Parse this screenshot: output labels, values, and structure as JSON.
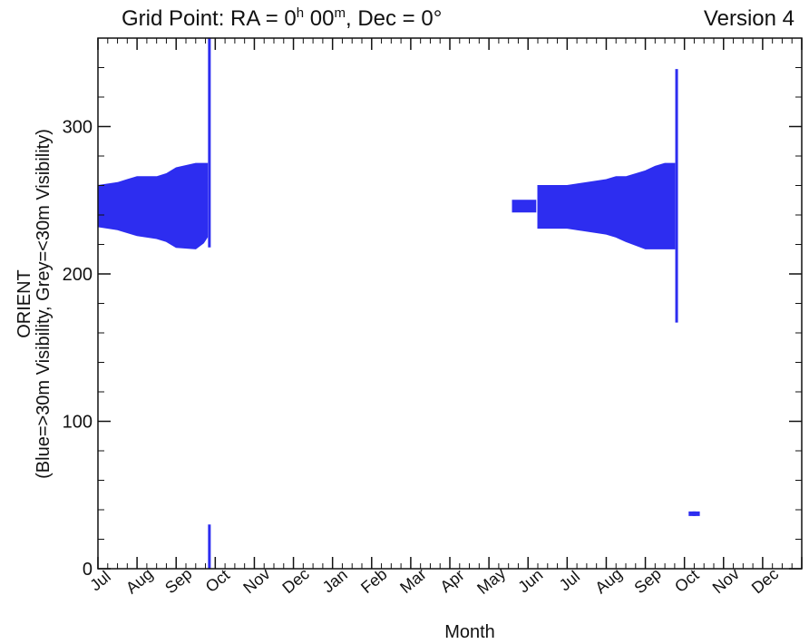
{
  "chart_data": {
    "type": "area",
    "title_prefix": "Grid Point: RA = 0",
    "title_h": "h",
    "title_mid": " 00",
    "title_m": "m",
    "title_suffix": ", Dec = 0°",
    "version": "Version 4",
    "xlabel": "Month",
    "ylabel_line1": "ORIENT",
    "ylabel_line2": "(Blue=>30m Visibility, Grey=<30m Visibility)",
    "months": [
      "Jul",
      "Aug",
      "Sep",
      "Oct",
      "Nov",
      "Dec",
      "Jan",
      "Feb",
      "Mar",
      "Apr",
      "May",
      "Jun",
      "Jul",
      "Aug",
      "Sep",
      "Oct",
      "Nov",
      "Dec"
    ],
    "ylim": [
      0,
      360
    ],
    "yticks": [
      0,
      100,
      200,
      300
    ],
    "colors": {
      "visible_30m": "#2d2df0",
      "axes": "#111111"
    },
    "series": [
      {
        "name": "Blue",
        "x": [
          0.0,
          0.5,
          0.75,
          1.0,
          1.25,
          1.5,
          1.75,
          2.0,
          2.5,
          2.7,
          2.8
        ],
        "low": [
          232,
          230,
          228,
          226,
          225,
          224,
          222,
          218,
          217,
          221,
          225
        ],
        "high": [
          260,
          262,
          264,
          266,
          266,
          266,
          268,
          272,
          275,
          275,
          275
        ]
      },
      {
        "name": "Blue",
        "x": [
          10.6,
          11.2,
          11.2
        ],
        "low": [
          242,
          242,
          242
        ],
        "high": [
          250,
          250,
          250
        ]
      },
      {
        "name": "Blue",
        "x": [
          11.25,
          11.5,
          12.0,
          12.5,
          13.0,
          13.25,
          13.5,
          14.0,
          14.25,
          14.5,
          14.75
        ],
        "low": [
          231,
          231,
          231,
          229,
          227,
          225,
          222,
          217,
          217,
          217,
          217
        ],
        "high": [
          260,
          260,
          260,
          262,
          264,
          266,
          266,
          270,
          273,
          275,
          275
        ]
      }
    ],
    "lines": [
      {
        "name": "Blue",
        "x": 2.85,
        "low": 218,
        "high": 360
      },
      {
        "name": "Blue",
        "x": 2.85,
        "low": 0,
        "high": 30
      },
      {
        "name": "Blue",
        "x": 14.8,
        "low": 167,
        "high": 339
      }
    ],
    "points": [
      {
        "name": "Blue",
        "x": 15.2,
        "y": 37
      },
      {
        "name": "Blue",
        "x": 15.3,
        "y": 37
      }
    ]
  }
}
